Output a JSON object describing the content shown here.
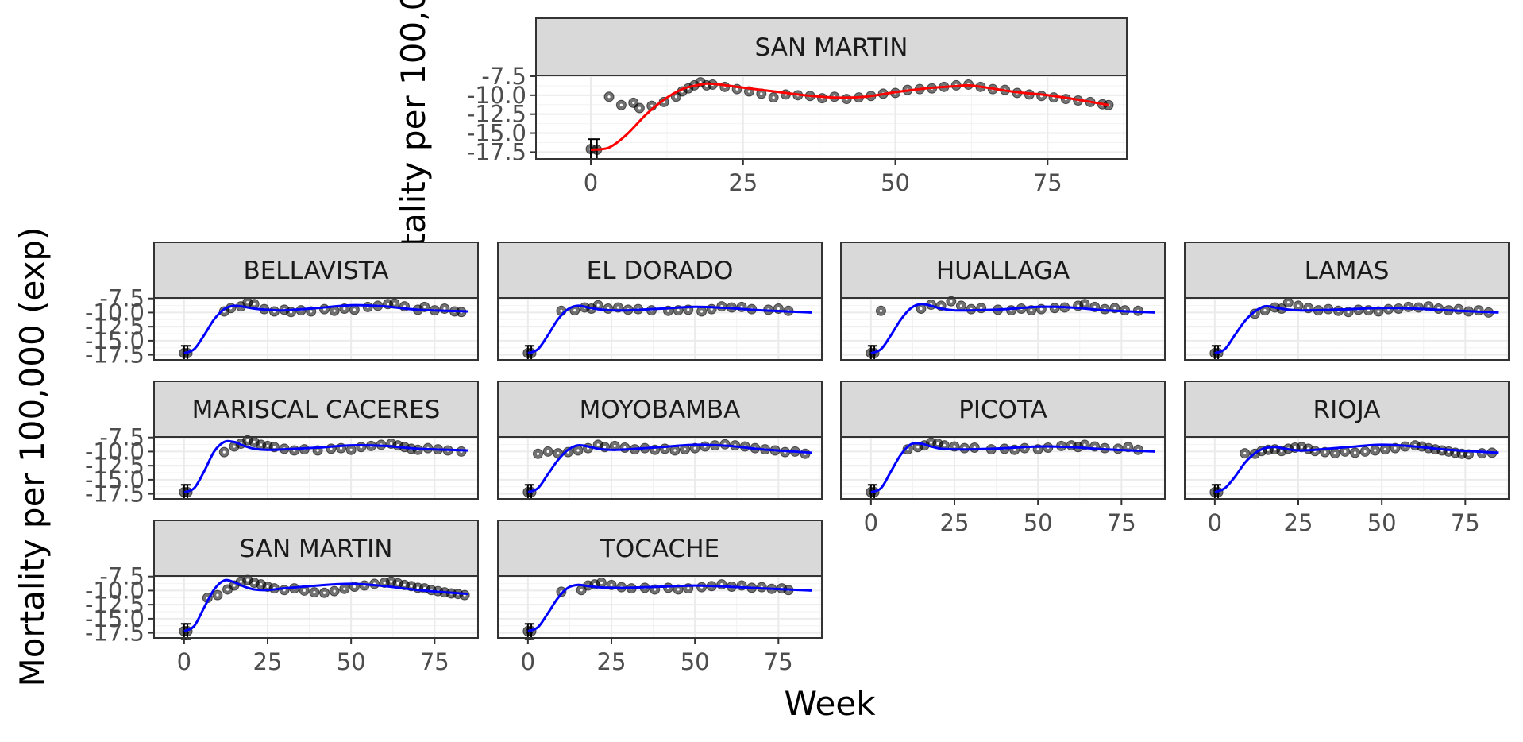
{
  "chart_data": [
    {
      "type": "scatter",
      "facet": "SAN MARTIN",
      "ylabel": "Mortality per 100,000 (exp)",
      "fit_color": "#ff0000",
      "x_ticks": [
        0,
        25,
        50,
        75
      ],
      "y_ticks": [
        "-7.5",
        "-10.0",
        "-12.5",
        "-15.0",
        "-17.5"
      ],
      "xlim": [
        -9,
        88
      ],
      "ylim": [
        -18.4,
        -7.4
      ],
      "series": [
        {
          "kind": "fitted",
          "x": [
            0,
            3,
            6,
            9,
            12,
            15,
            18,
            20,
            25,
            30,
            35,
            40,
            45,
            50,
            55,
            60,
            62,
            65,
            70,
            75,
            80,
            85
          ],
          "y": [
            -17.2,
            -16.9,
            -15.1,
            -12.6,
            -10.6,
            -9.2,
            -8.6,
            -8.5,
            -9.0,
            -9.5,
            -10.0,
            -10.3,
            -10.2,
            -9.6,
            -9.1,
            -8.8,
            -8.7,
            -9.0,
            -9.6,
            -10.0,
            -10.6,
            -11.3
          ]
        },
        {
          "kind": "points",
          "x": [
            0,
            1,
            3,
            5,
            7,
            8,
            10,
            12,
            14,
            15,
            16,
            17,
            18,
            19,
            20,
            22,
            24,
            26,
            28,
            30,
            32,
            34,
            36,
            38,
            40,
            42,
            44,
            46,
            48,
            50,
            52,
            54,
            56,
            58,
            60,
            62,
            64,
            66,
            68,
            70,
            72,
            74,
            76,
            78,
            80,
            82,
            84,
            85
          ],
          "y": [
            -17.1,
            -17.2,
            -10.2,
            -11.3,
            -11.0,
            -11.7,
            -11.4,
            -10.9,
            -10.2,
            -9.5,
            -9.1,
            -8.7,
            -8.3,
            -8.7,
            -8.6,
            -8.9,
            -9.2,
            -9.5,
            -9.8,
            -10.3,
            -9.9,
            -10.0,
            -10.1,
            -10.4,
            -10.2,
            -10.5,
            -10.3,
            -10.1,
            -9.8,
            -9.7,
            -9.3,
            -9.2,
            -9.1,
            -8.9,
            -8.7,
            -8.6,
            -8.9,
            -9.2,
            -9.3,
            -9.7,
            -9.9,
            -10.1,
            -10.3,
            -10.5,
            -10.7,
            -10.9,
            -11.2,
            -11.3
          ]
        }
      ]
    },
    {
      "type": "scatter",
      "facets": [
        "BELLAVISTA",
        "EL DORADO",
        "HUALLAGA",
        "LAMAS",
        "MARISCAL CACERES",
        "MOYOBAMBA",
        "PICOTA",
        "RIOJA",
        "SAN MARTIN",
        "TOCACHE"
      ],
      "xlabel": "Week",
      "ylabel": "Mortality per 100,000 (exp)",
      "fit_color": "#0000ff",
      "x_ticks": [
        0,
        25,
        50,
        75
      ],
      "y_ticks": [
        "-7.5",
        "-10.0",
        "-12.5",
        "-15.0",
        "-17.5"
      ],
      "xlim": [
        -9,
        88
      ],
      "ylim": [
        -18.4,
        -7.4
      ],
      "series": [
        {
          "name": "BELLAVISTA",
          "fit_y": [
            -17.2,
            -16.5,
            -14.0,
            -11.2,
            -9.4,
            -8.8,
            -9.0,
            -9.3,
            -9.5,
            -9.6,
            -9.2,
            -8.7,
            -8.9,
            -9.5,
            -9.8
          ],
          "x": [
            0,
            1,
            12,
            14,
            17,
            19,
            21,
            24,
            27,
            30,
            32,
            35,
            38,
            42,
            45,
            48,
            51,
            55,
            58,
            61,
            63,
            66,
            70,
            72,
            75,
            78,
            81,
            83
          ],
          "y": [
            -17.2,
            -17.2,
            -9.8,
            -9.2,
            -8.9,
            -8.2,
            -8.5,
            -9.4,
            -9.8,
            -9.5,
            -9.9,
            -9.6,
            -9.8,
            -9.4,
            -9.7,
            -9.3,
            -9.5,
            -9.0,
            -8.8,
            -8.5,
            -8.4,
            -8.9,
            -9.5,
            -9.0,
            -9.6,
            -9.3,
            -9.8,
            -9.9
          ]
        },
        {
          "name": "EL DORADO",
          "fit_y": [
            -17.2,
            -16.5,
            -14.0,
            -11.2,
            -9.4,
            -8.8,
            -9.1,
            -9.4,
            -9.6,
            -9.6,
            -9.3,
            -9.0,
            -9.2,
            -9.6,
            -10.0
          ],
          "x": [
            0,
            1,
            10,
            14,
            17,
            19,
            21,
            24,
            27,
            30,
            33,
            37,
            42,
            45,
            48,
            52,
            55,
            58,
            61,
            64,
            67,
            72,
            75,
            78
          ],
          "y": [
            -17.2,
            -17.2,
            -9.7,
            -9.6,
            -9.1,
            -9.3,
            -8.7,
            -9.3,
            -9.1,
            -9.5,
            -9.4,
            -9.6,
            -9.7,
            -9.6,
            -9.5,
            -9.8,
            -9.4,
            -8.9,
            -9.1,
            -9.0,
            -9.4,
            -9.5,
            -9.3,
            -9.7
          ]
        },
        {
          "name": "HUALLAGA",
          "fit_y": [
            -17.2,
            -16.5,
            -14.0,
            -11.2,
            -9.2,
            -8.5,
            -8.8,
            -9.3,
            -9.6,
            -9.6,
            -9.4,
            -9.0,
            -9.1,
            -9.6,
            -10.0
          ],
          "x": [
            0,
            1,
            3,
            15,
            18,
            21,
            24,
            27,
            30,
            33,
            38,
            42,
            45,
            48,
            51,
            55,
            58,
            62,
            64,
            67,
            70,
            73,
            76,
            80
          ],
          "y": [
            -17.2,
            -17.2,
            -9.7,
            -9.3,
            -8.6,
            -8.8,
            -8.0,
            -8.8,
            -9.4,
            -9.2,
            -9.5,
            -9.6,
            -9.3,
            -9.6,
            -9.4,
            -9.2,
            -9.1,
            -8.8,
            -8.5,
            -9.0,
            -9.4,
            -9.2,
            -9.6,
            -9.7
          ]
        },
        {
          "name": "LAMAS",
          "fit_y": [
            -17.2,
            -16.5,
            -14.0,
            -11.5,
            -9.8,
            -8.9,
            -9.1,
            -9.4,
            -9.6,
            -9.6,
            -9.4,
            -9.2,
            -9.3,
            -9.6,
            -10.0
          ],
          "x": [
            0,
            1,
            12,
            15,
            18,
            20,
            22,
            25,
            28,
            31,
            34,
            37,
            40,
            43,
            46,
            49,
            52,
            55,
            58,
            61,
            64,
            67,
            70,
            73,
            76,
            79,
            82
          ],
          "y": [
            -17.2,
            -17.2,
            -10.2,
            -9.6,
            -9.1,
            -9.3,
            -8.2,
            -8.8,
            -9.2,
            -9.6,
            -9.4,
            -9.7,
            -9.9,
            -9.5,
            -9.6,
            -9.8,
            -9.4,
            -9.3,
            -9.0,
            -9.1,
            -8.9,
            -9.3,
            -9.6,
            -9.4,
            -9.8,
            -9.6,
            -10.0
          ]
        },
        {
          "name": "MARISCAL CACERES",
          "fit_y": [
            -17.2,
            -16.5,
            -13.5,
            -10.0,
            -8.3,
            -8.3,
            -9.0,
            -9.5,
            -9.7,
            -9.6,
            -9.3,
            -8.9,
            -9.0,
            -9.5,
            -9.8
          ],
          "x": [
            0,
            1,
            12,
            15,
            17,
            19,
            21,
            23,
            25,
            27,
            30,
            33,
            36,
            40,
            44,
            47,
            50,
            53,
            56,
            59,
            62,
            64,
            66,
            68,
            70,
            73,
            76,
            79,
            83
          ],
          "y": [
            -17.2,
            -17.2,
            -10.1,
            -9.1,
            -8.6,
            -8.0,
            -8.3,
            -8.8,
            -9.0,
            -9.2,
            -9.5,
            -9.8,
            -9.6,
            -9.8,
            -9.5,
            -9.4,
            -9.7,
            -9.2,
            -9.0,
            -8.8,
            -8.6,
            -8.9,
            -9.2,
            -9.5,
            -9.7,
            -9.4,
            -9.6,
            -9.8,
            -10.0
          ]
        },
        {
          "name": "MOYOBAMBA",
          "fit_y": [
            -17.2,
            -16.5,
            -14.0,
            -11.5,
            -9.7,
            -8.9,
            -9.1,
            -9.5,
            -9.7,
            -9.6,
            -9.2,
            -8.8,
            -9.0,
            -9.6,
            -10.2
          ],
          "x": [
            0,
            1,
            3,
            6,
            9,
            12,
            15,
            18,
            21,
            23,
            26,
            29,
            32,
            35,
            38,
            41,
            44,
            47,
            50,
            53,
            56,
            59,
            62,
            65,
            68,
            71,
            74,
            77,
            80,
            83
          ],
          "y": [
            -17.2,
            -17.2,
            -10.4,
            -10.0,
            -10.3,
            -10.1,
            -9.8,
            -9.4,
            -8.8,
            -9.2,
            -9.0,
            -9.3,
            -9.6,
            -9.4,
            -9.7,
            -9.5,
            -9.8,
            -9.6,
            -9.4,
            -9.1,
            -8.9,
            -8.7,
            -8.9,
            -9.1,
            -9.4,
            -9.6,
            -9.8,
            -10.1,
            -10.0,
            -10.4
          ]
        },
        {
          "name": "PICOTA",
          "fit_y": [
            -17.2,
            -16.5,
            -13.5,
            -10.5,
            -8.7,
            -8.6,
            -9.1,
            -9.5,
            -9.6,
            -9.6,
            -9.4,
            -9.1,
            -9.2,
            -9.6,
            -10.0
          ],
          "x": [
            0,
            1,
            11,
            14,
            16,
            18,
            20,
            22,
            25,
            28,
            31,
            36,
            40,
            43,
            46,
            50,
            53,
            57,
            60,
            62,
            64,
            67,
            70,
            74,
            77,
            80
          ],
          "y": [
            -17.2,
            -17.2,
            -9.6,
            -9.2,
            -8.9,
            -8.4,
            -8.6,
            -8.9,
            -9.1,
            -9.4,
            -9.3,
            -9.6,
            -9.5,
            -9.7,
            -9.4,
            -9.6,
            -9.3,
            -9.0,
            -8.9,
            -9.2,
            -8.8,
            -9.1,
            -9.4,
            -9.5,
            -9.2,
            -9.7
          ]
        },
        {
          "name": "RIOJA",
          "fit_y": [
            -17.2,
            -16.5,
            -14.5,
            -12.0,
            -10.3,
            -9.4,
            -9.2,
            -9.5,
            -9.8,
            -9.7,
            -9.2,
            -8.8,
            -9.1,
            -9.7,
            -10.2
          ],
          "x": [
            0,
            1,
            9,
            12,
            14,
            16,
            18,
            20,
            22,
            24,
            26,
            28,
            30,
            33,
            36,
            39,
            42,
            45,
            48,
            51,
            54,
            57,
            60,
            62,
            64,
            66,
            68,
            70,
            72,
            74,
            76,
            80,
            83
          ],
          "y": [
            -17.2,
            -17.2,
            -10.3,
            -10.4,
            -9.9,
            -9.7,
            -9.6,
            -9.9,
            -9.5,
            -9.3,
            -9.2,
            -9.5,
            -9.9,
            -10.1,
            -10.3,
            -10.0,
            -10.2,
            -10.0,
            -9.8,
            -9.6,
            -9.4,
            -9.1,
            -8.9,
            -9.1,
            -9.4,
            -9.6,
            -9.8,
            -10.0,
            -10.2,
            -10.4,
            -10.5,
            -10.3,
            -10.2
          ]
        },
        {
          "name": "SAN MARTIN",
          "fit_y": [
            -17.2,
            -16.3,
            -13.0,
            -9.8,
            -8.2,
            -8.5,
            -9.3,
            -9.8,
            -9.9,
            -9.6,
            -9.1,
            -8.8,
            -9.2,
            -9.9,
            -10.6
          ],
          "x": [
            0,
            1,
            7,
            10,
            13,
            15,
            17,
            19,
            21,
            23,
            25,
            27,
            30,
            33,
            36,
            39,
            42,
            45,
            48,
            51,
            54,
            57,
            60,
            62,
            64,
            66,
            68,
            70,
            72,
            74,
            76,
            78,
            80,
            82,
            84
          ],
          "y": [
            -17.2,
            -17.2,
            -11.3,
            -10.8,
            -9.8,
            -9.1,
            -8.4,
            -8.1,
            -8.6,
            -8.9,
            -9.3,
            -9.6,
            -9.9,
            -9.6,
            -10.0,
            -10.3,
            -10.4,
            -10.1,
            -9.7,
            -9.3,
            -9.1,
            -8.8,
            -8.6,
            -8.4,
            -8.7,
            -9.0,
            -9.2,
            -9.5,
            -9.6,
            -9.9,
            -10.1,
            -10.3,
            -10.5,
            -10.6,
            -10.8
          ]
        },
        {
          "name": "TOCACHE",
          "fit_y": [
            -17.2,
            -16.5,
            -14.0,
            -11.3,
            -9.5,
            -9.0,
            -9.2,
            -9.4,
            -9.5,
            -9.5,
            -9.3,
            -9.1,
            -9.3,
            -9.6,
            -10.0
          ],
          "x": [
            0,
            1,
            10,
            16,
            18,
            20,
            22,
            25,
            28,
            31,
            35,
            38,
            42,
            45,
            48,
            52,
            55,
            58,
            61,
            64,
            67,
            70,
            73,
            76,
            78
          ],
          "y": [
            -17.2,
            -17.2,
            -10.2,
            -9.9,
            -9.1,
            -8.9,
            -8.6,
            -9.0,
            -9.4,
            -9.6,
            -9.5,
            -9.8,
            -9.5,
            -9.8,
            -9.6,
            -9.4,
            -9.2,
            -8.9,
            -9.3,
            -9.1,
            -9.5,
            -9.4,
            -9.7,
            -9.6,
            -9.9
          ]
        }
      ]
    }
  ]
}
